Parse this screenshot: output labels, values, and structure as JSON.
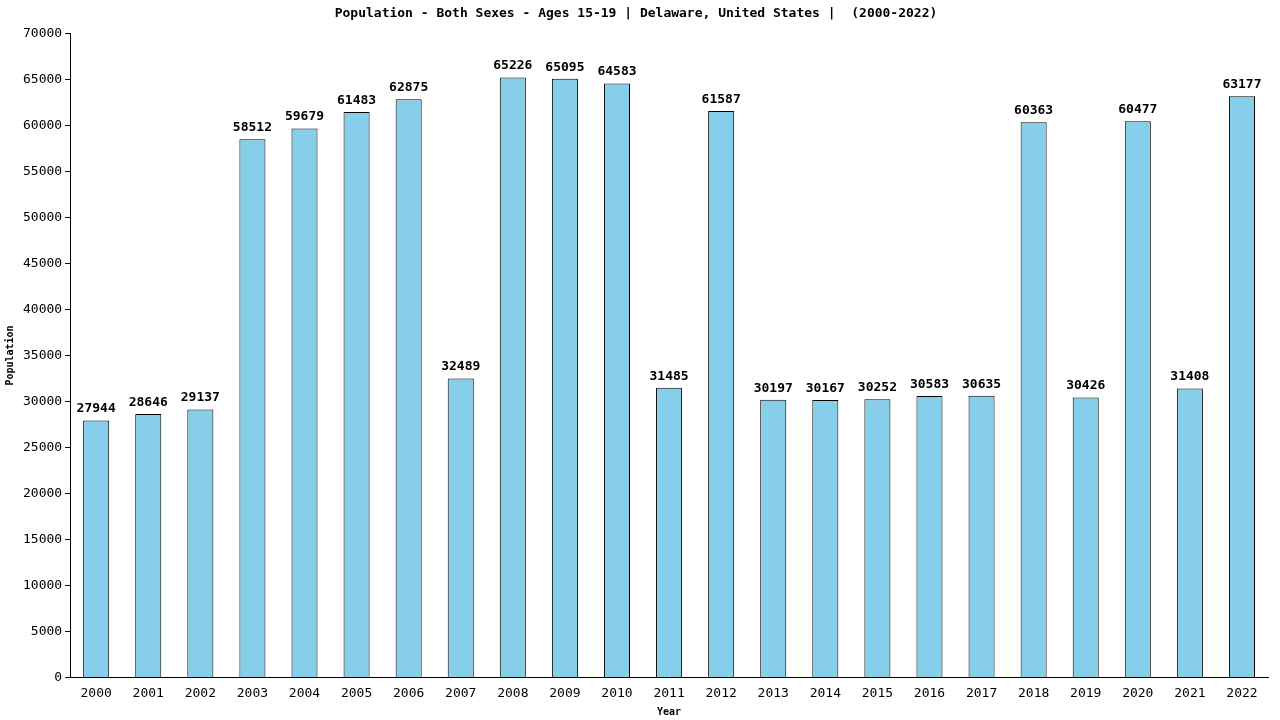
{
  "chart_data": {
    "type": "bar",
    "title": "Population - Both Sexes - Ages 15-19 | Delaware, United States |  (2000-2022)",
    "x_label": "Year",
    "y_label": "Population",
    "categories": [
      "2000",
      "2001",
      "2002",
      "2003",
      "2004",
      "2005",
      "2006",
      "2007",
      "2008",
      "2009",
      "2010",
      "2011",
      "2012",
      "2013",
      "2014",
      "2015",
      "2016",
      "2017",
      "2018",
      "2019",
      "2020",
      "2021",
      "2022"
    ],
    "values": [
      27944,
      28646,
      29137,
      58512,
      59679,
      61483,
      62875,
      32489,
      65226,
      65095,
      64583,
      31485,
      61587,
      30197,
      30167,
      30252,
      30583,
      30635,
      60363,
      30426,
      60477,
      31408,
      63177
    ],
    "color": "#87ceeb",
    "ylim": [
      0,
      70000
    ],
    "yticks": [
      0,
      5000,
      10000,
      15000,
      20000,
      25000,
      30000,
      35000,
      40000,
      45000,
      50000,
      55000,
      60000,
      65000,
      70000
    ],
    "grid": false,
    "data_labels": true
  }
}
